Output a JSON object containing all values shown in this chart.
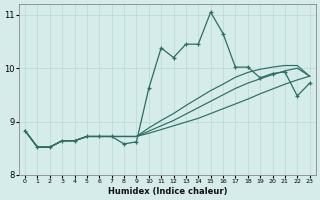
{
  "xlabel": "Humidex (Indice chaleur)",
  "bg_color": "#d6ecea",
  "grid_color": "#b8d8d4",
  "line_color": "#2a6e63",
  "xlim": [
    -0.5,
    23.5
  ],
  "ylim": [
    8.0,
    11.2
  ],
  "yticks": [
    8,
    9,
    10,
    11
  ],
  "xticks": [
    0,
    1,
    2,
    3,
    4,
    5,
    6,
    7,
    8,
    9,
    10,
    11,
    12,
    13,
    14,
    15,
    16,
    17,
    18,
    19,
    20,
    21,
    22,
    23
  ],
  "x_main": [
    0,
    1,
    2,
    3,
    4,
    5,
    6,
    7,
    8,
    9,
    10,
    11,
    12,
    13,
    14,
    15,
    16,
    17,
    18,
    19,
    20,
    21,
    22,
    23
  ],
  "y_main": [
    8.83,
    8.52,
    8.52,
    8.64,
    8.64,
    8.72,
    8.72,
    8.72,
    8.58,
    8.62,
    9.62,
    10.38,
    10.2,
    10.45,
    10.45,
    11.05,
    10.65,
    10.02,
    10.02,
    9.82,
    9.9,
    9.93,
    9.48,
    9.72
  ],
  "x_reg": [
    0,
    1,
    2,
    3,
    4,
    5,
    6,
    7,
    8,
    9,
    10,
    11,
    12,
    13,
    14,
    15,
    16,
    17,
    18,
    19,
    20,
    21,
    22,
    23
  ],
  "y_reg1": [
    8.83,
    8.52,
    8.52,
    8.64,
    8.64,
    8.72,
    8.72,
    8.72,
    8.72,
    8.72,
    8.78,
    8.85,
    8.92,
    8.99,
    9.06,
    9.15,
    9.24,
    9.33,
    9.42,
    9.52,
    9.61,
    9.7,
    9.78,
    9.85
  ],
  "y_reg2": [
    8.83,
    8.52,
    8.52,
    8.64,
    8.64,
    8.72,
    8.72,
    8.72,
    8.72,
    8.72,
    8.82,
    8.92,
    9.02,
    9.14,
    9.26,
    9.38,
    9.5,
    9.62,
    9.72,
    9.8,
    9.88,
    9.95,
    10.0,
    9.85
  ],
  "y_reg3": [
    8.83,
    8.52,
    8.52,
    8.64,
    8.64,
    8.72,
    8.72,
    8.72,
    8.72,
    8.72,
    8.88,
    9.02,
    9.15,
    9.3,
    9.44,
    9.58,
    9.7,
    9.83,
    9.92,
    9.98,
    10.02,
    10.05,
    10.05,
    9.85
  ]
}
